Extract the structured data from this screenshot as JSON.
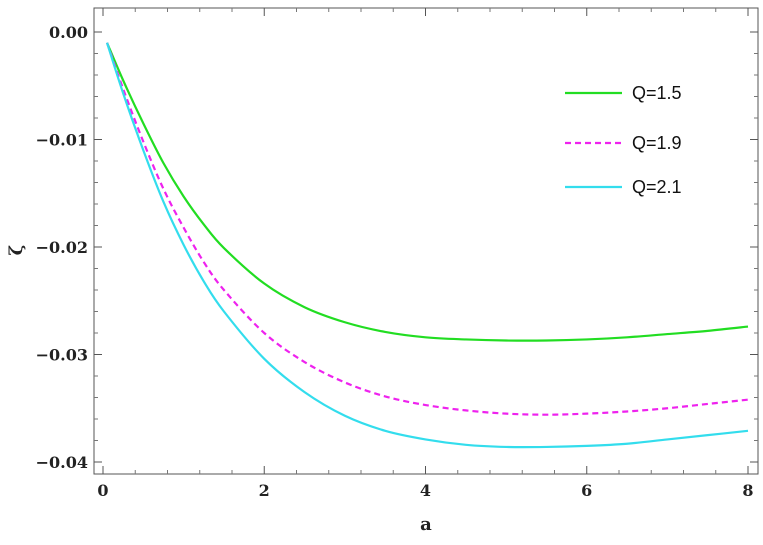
{
  "chart_data": {
    "type": "line",
    "title": "",
    "xlabel": "a",
    "ylabel": "ζ",
    "xlim": [
      0,
      8
    ],
    "ylim": [
      -0.04,
      0.0
    ],
    "x_ticks": [
      0,
      2,
      4,
      6,
      8
    ],
    "x_tick_labels": [
      "0",
      "2",
      "4",
      "6",
      "8"
    ],
    "y_ticks": [
      0.0,
      -0.01,
      -0.02,
      -0.03,
      -0.04
    ],
    "y_tick_labels": [
      "0.00",
      "−0.01",
      "−0.02",
      "−0.03",
      "−0.04"
    ],
    "grid": false,
    "legend_position": "top-right",
    "series": [
      {
        "name": "Q=1.5",
        "color": "#22dd22",
        "dash": "solid",
        "x": [
          0.05,
          0.25,
          0.5,
          0.75,
          1.0,
          1.25,
          1.5,
          2.0,
          2.5,
          3.0,
          3.5,
          4.0,
          4.5,
          5.0,
          5.5,
          6.0,
          6.5,
          7.0,
          7.5,
          8.0
        ],
        "y": [
          -0.001,
          -0.0045,
          -0.0085,
          -0.0122,
          -0.0153,
          -0.0179,
          -0.0201,
          -0.0234,
          -0.0256,
          -0.027,
          -0.0279,
          -0.0284,
          -0.0286,
          -0.0287,
          -0.0287,
          -0.0286,
          -0.0284,
          -0.0281,
          -0.0278,
          -0.0274
        ]
      },
      {
        "name": "Q=1.9",
        "color": "#ee22ee",
        "dash": "dashed",
        "x": [
          0.05,
          0.25,
          0.5,
          0.75,
          1.0,
          1.25,
          1.5,
          2.0,
          2.5,
          3.0,
          3.5,
          4.0,
          4.5,
          5.0,
          5.5,
          6.0,
          6.5,
          7.0,
          7.5,
          8.0
        ],
        "y": [
          -0.001,
          -0.0053,
          -0.0102,
          -0.0146,
          -0.0182,
          -0.0214,
          -0.024,
          -0.028,
          -0.0307,
          -0.0326,
          -0.0339,
          -0.0347,
          -0.0352,
          -0.0355,
          -0.0356,
          -0.0355,
          -0.0353,
          -0.035,
          -0.0346,
          -0.0342
        ]
      },
      {
        "name": "Q=2.1",
        "color": "#33dded",
        "dash": "solid",
        "x": [
          0.05,
          0.25,
          0.5,
          0.75,
          1.0,
          1.25,
          1.5,
          2.0,
          2.5,
          3.0,
          3.5,
          4.0,
          4.5,
          5.0,
          5.5,
          6.0,
          6.5,
          7.0,
          7.5,
          8.0
        ],
        "y": [
          -0.001,
          -0.0057,
          -0.011,
          -0.0158,
          -0.0198,
          -0.0232,
          -0.026,
          -0.0304,
          -0.0335,
          -0.0357,
          -0.0371,
          -0.0379,
          -0.0384,
          -0.0386,
          -0.0386,
          -0.0385,
          -0.0383,
          -0.0379,
          -0.0375,
          -0.0371
        ]
      }
    ]
  }
}
